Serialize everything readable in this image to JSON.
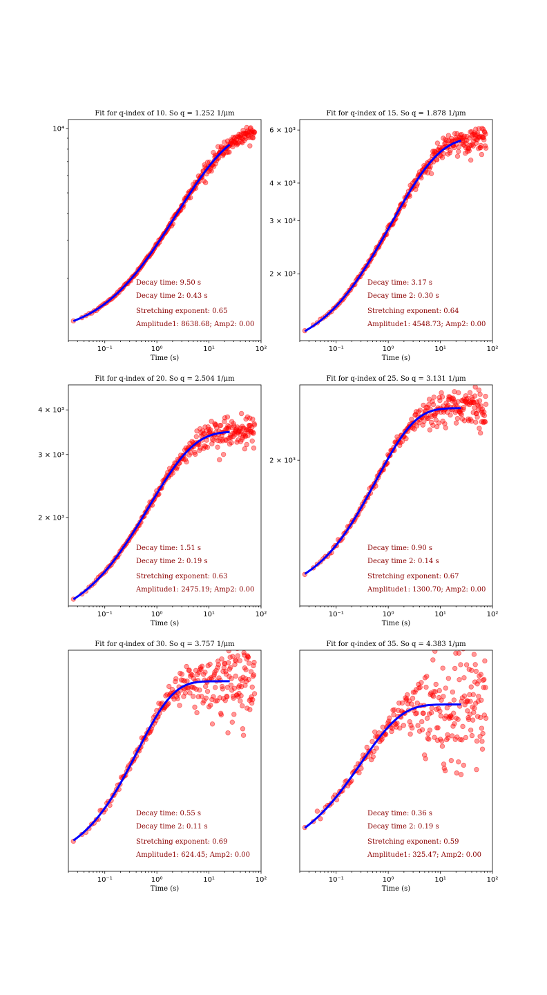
{
  "chart_data": [
    {
      "type": "scatter",
      "title": "Fit for q-index of 10. So q = 1.252 1/μm",
      "xlabel": "Time (s)",
      "xscale": "log",
      "yscale": "log",
      "xlim": [
        0.02,
        100
      ],
      "ylim": [
        1020,
        11000
      ],
      "xticks": [
        {
          "value": 0.1,
          "label": "10⁻¹"
        },
        {
          "value": 1,
          "label": "10⁰"
        },
        {
          "value": 10,
          "label": "10¹"
        },
        {
          "value": 100,
          "label": "10²"
        }
      ],
      "yticks": [
        {
          "value": 10000,
          "label": "10⁴"
        }
      ],
      "yminor": [
        2000,
        3000,
        4000,
        5000,
        6000,
        7000,
        8000,
        9000
      ],
      "points_color": "#ff0000",
      "fit_color": "#0000ff",
      "fit": {
        "A": 8638.68,
        "tau": 9.5,
        "beta": 0.65,
        "B": 1080,
        "tmin": 0.025,
        "tmax": 25
      },
      "scatter": {
        "tmin": 0.025,
        "tmax": 75,
        "n": 260,
        "noise": 0.035,
        "noise_max": 0.12
      },
      "annotations": [
        "Decay time: 9.50 s",
        "Decay time 2: 0.43 s",
        "Stretching exponent: 0.65",
        "Amplitude1: 8638.68; Amp2: 0.00"
      ]
    },
    {
      "type": "scatter",
      "title": "Fit for q-index of 15. So q = 1.878 1/μm",
      "xlabel": "Time (s)",
      "xscale": "log",
      "yscale": "log",
      "xlim": [
        0.02,
        100
      ],
      "ylim": [
        1200,
        6500
      ],
      "xticks": [
        {
          "value": 0.1,
          "label": "10⁻¹"
        },
        {
          "value": 1,
          "label": "10⁰"
        },
        {
          "value": 10,
          "label": "10¹"
        },
        {
          "value": 100,
          "label": "10²"
        }
      ],
      "yticks": [
        {
          "value": 2000,
          "label": "2 × 10³"
        },
        {
          "value": 3000,
          "label": "3 × 10³"
        },
        {
          "value": 4000,
          "label": "4 × 10³"
        },
        {
          "value": 6000,
          "label": "6 × 10³"
        }
      ],
      "yminor": [],
      "points_color": "#ff0000",
      "fit_color": "#0000ff",
      "fit": {
        "A": 4548.73,
        "tau": 3.17,
        "beta": 0.64,
        "B": 1090,
        "tmin": 0.025,
        "tmax": 25
      },
      "scatter": {
        "tmin": 0.025,
        "tmax": 75,
        "n": 260,
        "noise": 0.04,
        "noise_max": 0.15
      },
      "annotations": [
        "Decay time: 3.17 s",
        "Decay time 2: 0.30 s",
        "Stretching exponent: 0.64",
        "Amplitude1: 4548.73; Amp2: 0.00"
      ]
    },
    {
      "type": "scatter",
      "title": "Fit for q-index of 20. So q = 2.504 1/μm",
      "xlabel": "Time (s)",
      "xscale": "log",
      "yscale": "log",
      "xlim": [
        0.02,
        100
      ],
      "ylim": [
        1130,
        4700
      ],
      "xticks": [
        {
          "value": 0.1,
          "label": "10⁻¹"
        },
        {
          "value": 1,
          "label": "10⁰"
        },
        {
          "value": 10,
          "label": "10¹"
        },
        {
          "value": 100,
          "label": "10²"
        }
      ],
      "yticks": [
        {
          "value": 2000,
          "label": "2 × 10³"
        },
        {
          "value": 3000,
          "label": "3 × 10³"
        },
        {
          "value": 4000,
          "label": "4 × 10³"
        }
      ],
      "yminor": [],
      "points_color": "#ff0000",
      "fit_color": "#0000ff",
      "fit": {
        "A": 2475.19,
        "tau": 1.51,
        "beta": 0.63,
        "B": 1000,
        "tmin": 0.025,
        "tmax": 25
      },
      "scatter": {
        "tmin": 0.025,
        "tmax": 75,
        "n": 260,
        "noise": 0.045,
        "noise_max": 0.18
      },
      "annotations": [
        "Decay time: 1.51 s",
        "Decay time 2: 0.19 s",
        "Stretching exponent: 0.63",
        "Amplitude1: 2475.19; Amp2: 0.00"
      ]
    },
    {
      "type": "scatter",
      "title": "Fit for q-index of 25. So q = 3.131 1/μm",
      "xlabel": "Time (s)",
      "xscale": "log",
      "yscale": "log",
      "xlim": [
        0.02,
        100
      ],
      "ylim": [
        1120,
        2700
      ],
      "xticks": [
        {
          "value": 0.1,
          "label": "10⁻¹"
        },
        {
          "value": 1,
          "label": "10⁰"
        },
        {
          "value": 10,
          "label": "10¹"
        },
        {
          "value": 100,
          "label": "10²"
        }
      ],
      "yticks": [
        {
          "value": 2000,
          "label": "2 × 10³"
        }
      ],
      "yminor": [],
      "points_color": "#ff0000",
      "fit_color": "#0000ff",
      "fit": {
        "A": 1300.7,
        "tau": 0.9,
        "beta": 0.67,
        "B": 1160,
        "tmin": 0.025,
        "tmax": 25
      },
      "scatter": {
        "tmin": 0.025,
        "tmax": 75,
        "n": 260,
        "noise": 0.035,
        "noise_max": 0.14
      },
      "annotations": [
        "Decay time: 0.90 s",
        "Decay time 2: 0.14 s",
        "Stretching exponent: 0.67",
        "Amplitude1: 1300.70; Amp2: 0.00"
      ]
    },
    {
      "type": "scatter",
      "title": "Fit for q-index of 30. So q = 3.757 1/μm",
      "xlabel": "Time (s)",
      "xscale": "log",
      "yscale": "log",
      "xlim": [
        0.02,
        100
      ],
      "ylim": [
        1085,
        1860
      ],
      "xticks": [
        {
          "value": 0.1,
          "label": "10⁻¹"
        },
        {
          "value": 1,
          "label": "10⁰"
        },
        {
          "value": 10,
          "label": "10¹"
        },
        {
          "value": 100,
          "label": "10²"
        }
      ],
      "yticks": [],
      "yminor": [],
      "points_color": "#ff0000",
      "fit_color": "#0000ff",
      "fit": {
        "A": 624.45,
        "tau": 0.55,
        "beta": 0.69,
        "B": 1100,
        "tmin": 0.025,
        "tmax": 25
      },
      "scatter": {
        "tmin": 0.025,
        "tmax": 75,
        "n": 260,
        "noise": 0.04,
        "noise_max": 0.2
      },
      "annotations": [
        "Decay time: 0.55 s",
        "Decay time 2: 0.11 s",
        "Stretching exponent: 0.69",
        "Amplitude1: 624.45; Amp2: 0.00"
      ]
    },
    {
      "type": "scatter",
      "title": "Fit for q-index of 35. So q = 4.383 1/μm",
      "xlabel": "Time (s)",
      "xscale": "log",
      "yscale": "log",
      "xlim": [
        0.02,
        100
      ],
      "ylim": [
        1080,
        1560
      ],
      "xticks": [
        {
          "value": 0.1,
          "label": "10⁻¹"
        },
        {
          "value": 1,
          "label": "10⁰"
        },
        {
          "value": 10,
          "label": "10¹"
        },
        {
          "value": 100,
          "label": "10²"
        }
      ],
      "yticks": [],
      "yminor": [],
      "points_color": "#ff0000",
      "fit_color": "#0000ff",
      "fit": {
        "A": 325.47,
        "tau": 0.36,
        "beta": 0.59,
        "B": 1100,
        "tmin": 0.025,
        "tmax": 25
      },
      "scatter": {
        "tmin": 0.025,
        "tmax": 75,
        "n": 260,
        "noise": 0.05,
        "noise_max": 0.25
      },
      "annotations": [
        "Decay time: 0.36 s",
        "Decay time 2: 0.19 s",
        "Stretching exponent: 0.59",
        "Amplitude1: 325.47; Amp2: 0.00"
      ]
    }
  ]
}
